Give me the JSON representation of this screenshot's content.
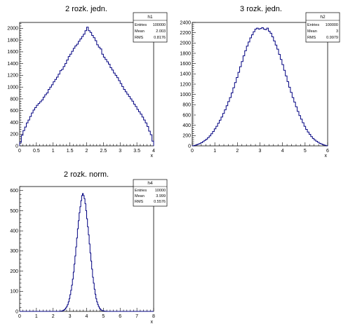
{
  "chart_data": [
    {
      "type": "bar",
      "id": "h1",
      "title": "2 rozk. jedn.",
      "xlabel": "x",
      "ylabel": "",
      "xlim": [
        0,
        4
      ],
      "ylim": [
        0,
        2100
      ],
      "xticks": [
        "0",
        "0.5",
        "1",
        "1.5",
        "2",
        "2.5",
        "3",
        "3.5",
        "4"
      ],
      "yticks": [
        "0",
        "200",
        "400",
        "600",
        "800",
        "1000",
        "1200",
        "1400",
        "1600",
        "1800",
        "2000"
      ],
      "bin_edges": [
        0,
        4
      ],
      "values": [
        60,
        180,
        260,
        320,
        390,
        440,
        500,
        560,
        610,
        650,
        690,
        720,
        750,
        780,
        830,
        870,
        900,
        960,
        1000,
        1040,
        1090,
        1130,
        1170,
        1220,
        1280,
        1300,
        1350,
        1400,
        1460,
        1520,
        1560,
        1610,
        1660,
        1700,
        1730,
        1780,
        1820,
        1860,
        1900,
        1960,
        2020,
        1960,
        1930,
        1880,
        1840,
        1790,
        1720,
        1680,
        1650,
        1560,
        1510,
        1470,
        1430,
        1390,
        1330,
        1290,
        1240,
        1200,
        1160,
        1110,
        1060,
        1010,
        960,
        920,
        880,
        840,
        800,
        760,
        710,
        670,
        620,
        580,
        540,
        490,
        440,
        390,
        330,
        250,
        190,
        80
      ],
      "stats": {
        "name": "h1",
        "entries_label": "Entries",
        "entries": "100000",
        "mean_label": "Mean",
        "mean": "2.003",
        "rms_label": "RMS",
        "rms": "0.8176"
      }
    },
    {
      "type": "bar",
      "id": "h2",
      "title": "3 rozk. jedn.",
      "xlabel": "x",
      "ylabel": "",
      "xlim": [
        0,
        6
      ],
      "ylim": [
        0,
        2400
      ],
      "xticks": [
        "0",
        "1",
        "2",
        "3",
        "4",
        "5",
        "6"
      ],
      "yticks": [
        "0",
        "200",
        "400",
        "600",
        "800",
        "1000",
        "1200",
        "1400",
        "1600",
        "1800",
        "2000",
        "2200",
        "2400"
      ],
      "bin_edges": [
        0,
        6
      ],
      "values": [
        2,
        8,
        18,
        30,
        45,
        62,
        82,
        105,
        130,
        160,
        195,
        235,
        280,
        330,
        380,
        440,
        500,
        560,
        630,
        700,
        780,
        860,
        940,
        1030,
        1130,
        1230,
        1330,
        1430,
        1540,
        1640,
        1750,
        1850,
        1940,
        2020,
        2100,
        2160,
        2220,
        2270,
        2290,
        2270,
        2280,
        2300,
        2270,
        2260,
        2290,
        2230,
        2190,
        2120,
        2040,
        1960,
        1880,
        1780,
        1680,
        1580,
        1470,
        1360,
        1250,
        1140,
        1040,
        940,
        850,
        760,
        670,
        590,
        520,
        450,
        380,
        320,
        270,
        225,
        180,
        145,
        115,
        90,
        70,
        50,
        35,
        22,
        12,
        4
      ],
      "stats": {
        "name": "h2",
        "entries_label": "Entries",
        "entries": "100000",
        "mean_label": "Mean",
        "mean": "3",
        "rms_label": "RMS",
        "rms": "0.9979"
      }
    },
    {
      "type": "bar",
      "id": "h4",
      "title": "2 rozk. norm.",
      "xlabel": "x",
      "ylabel": "",
      "xlim": [
        0,
        8
      ],
      "ylim": [
        0,
        620
      ],
      "xticks": [
        "0",
        "1",
        "2",
        "3",
        "4",
        "5",
        "6",
        "7",
        "8"
      ],
      "yticks": [
        "0",
        "100",
        "200",
        "300",
        "400",
        "500",
        "600"
      ],
      "bin_edges": [
        0,
        8
      ],
      "values": [
        0,
        0,
        0,
        0,
        0,
        0,
        0,
        0,
        0,
        0,
        0,
        0,
        0,
        0,
        0,
        0,
        0,
        0,
        0,
        0,
        0,
        0,
        0,
        0,
        0,
        0,
        0,
        0,
        0,
        0,
        0,
        0,
        0,
        0,
        0,
        0,
        0,
        0,
        0,
        0,
        0,
        0,
        0,
        0,
        0,
        0,
        0,
        0,
        1,
        1,
        2,
        3,
        5,
        8,
        12,
        18,
        25,
        34,
        47,
        63,
        83,
        105,
        130,
        160,
        195,
        235,
        275,
        320,
        365,
        410,
        450,
        490,
        520,
        550,
        575,
        585,
        575,
        560,
        535,
        500,
        460,
        420,
        380,
        335,
        290,
        250,
        210,
        170,
        140,
        110,
        85,
        63,
        47,
        34,
        24,
        16,
        11,
        7,
        4,
        3,
        2,
        1,
        1,
        0,
        0,
        0,
        0,
        0,
        0,
        0,
        0,
        0,
        0,
        0,
        0,
        0,
        0,
        0,
        0,
        0,
        0,
        0,
        0,
        0,
        0,
        0,
        0,
        0,
        0,
        0,
        0,
        0,
        0,
        0,
        0,
        0,
        0,
        0,
        0,
        0,
        0,
        0,
        0,
        0,
        0,
        0,
        0,
        0,
        0,
        0,
        0,
        0,
        0,
        0,
        0,
        0,
        0,
        0,
        0,
        0
      ],
      "stats": {
        "name": "h4",
        "entries_label": "Entries",
        "entries": "10000",
        "mean_label": "Mean",
        "mean": "3.999",
        "rms_label": "RMS",
        "rms": "0.5576"
      }
    }
  ]
}
